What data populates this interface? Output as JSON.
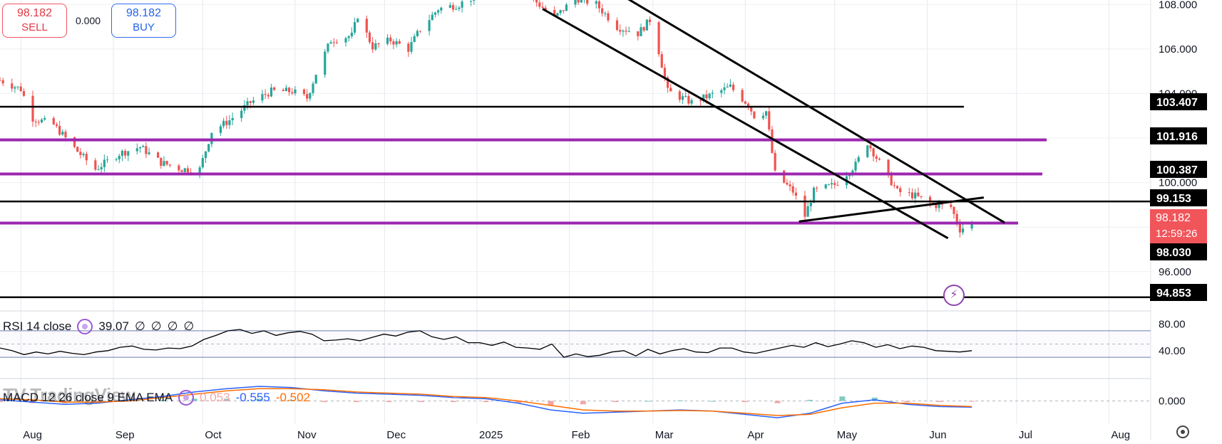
{
  "trade": {
    "sell_price": "98.182",
    "sell_label": "SELL",
    "spread": "0.000",
    "buy_price": "98.182",
    "buy_label": "BUY"
  },
  "current_price": {
    "value": "98.182",
    "countdown": "12:59:26",
    "color": "#f0555a"
  },
  "chart_data": [
    {
      "type": "candlestick",
      "x_ticks": [
        "Aug",
        "Sep",
        "Oct",
        "Nov",
        "Dec",
        "2025",
        "Feb",
        "Mar",
        "Apr",
        "May",
        "Jun",
        "Jul",
        "Aug"
      ],
      "x_range": [
        "2024-07-25",
        "2025-08-15"
      ],
      "y_ticks": [
        96.0,
        98.0,
        100.0,
        102.0,
        104.0,
        106.0,
        108.0
      ],
      "y_tick_labels": [
        "96.000",
        "",
        "100.000",
        "",
        "104.000",
        "106.000",
        "108.000"
      ],
      "ylim": [
        94.3,
        108.2
      ],
      "grid": true,
      "colors": {
        "up": "#26a69a",
        "down": "#ef5350"
      },
      "price_path": [
        [
          "2024-07-25",
          104.6
        ],
        [
          "2024-08-01",
          104.2
        ],
        [
          "2024-08-05",
          102.9
        ],
        [
          "2024-08-12",
          102.6
        ],
        [
          "2024-08-20",
          101.4
        ],
        [
          "2024-08-26",
          100.6
        ],
        [
          "2024-09-03",
          101.3
        ],
        [
          "2024-09-10",
          101.6
        ],
        [
          "2024-09-17",
          100.9
        ],
        [
          "2024-09-24",
          100.6
        ],
        [
          "2024-09-30",
          100.6
        ],
        [
          "2024-10-04",
          102.3
        ],
        [
          "2024-10-10",
          102.8
        ],
        [
          "2024-10-17",
          103.6
        ],
        [
          "2024-10-24",
          104.1
        ],
        [
          "2024-10-31",
          104.1
        ],
        [
          "2024-11-05",
          103.8
        ],
        [
          "2024-11-08",
          104.9
        ],
        [
          "2024-11-13",
          106.4
        ],
        [
          "2024-11-20",
          106.6
        ],
        [
          "2024-11-22",
          107.5
        ],
        [
          "2024-11-27",
          106.1
        ],
        [
          "2024-12-03",
          106.4
        ],
        [
          "2024-12-09",
          106.0
        ],
        [
          "2024-12-13",
          106.9
        ],
        [
          "2024-12-19",
          107.8
        ],
        [
          "2024-12-26",
          108.0
        ],
        [
          "2025-01-02",
          108.5
        ],
        [
          "2025-01-10",
          109.6
        ],
        [
          "2025-01-15",
          109.0
        ],
        [
          "2025-01-21",
          108.1
        ],
        [
          "2025-01-27",
          107.4
        ],
        [
          "2025-02-03",
          108.3
        ],
        [
          "2025-02-10",
          108.0
        ],
        [
          "2025-02-17",
          107.0
        ],
        [
          "2025-02-24",
          106.7
        ],
        [
          "2025-02-28",
          107.3
        ],
        [
          "2025-03-03",
          105.9
        ],
        [
          "2025-03-06",
          104.1
        ],
        [
          "2025-03-14",
          103.6
        ],
        [
          "2025-03-20",
          103.9
        ],
        [
          "2025-03-27",
          104.3
        ],
        [
          "2025-04-02",
          103.5
        ],
        [
          "2025-04-04",
          103.0
        ],
        [
          "2025-04-08",
          103.2
        ],
        [
          "2025-04-11",
          100.4
        ],
        [
          "2025-04-17",
          99.6
        ],
        [
          "2025-04-21",
          98.5
        ],
        [
          "2025-04-24",
          99.6
        ],
        [
          "2025-05-01",
          99.9
        ],
        [
          "2025-05-08",
          100.8
        ],
        [
          "2025-05-12",
          101.8
        ],
        [
          "2025-05-16",
          100.9
        ],
        [
          "2025-05-22",
          99.6
        ],
        [
          "2025-05-28",
          99.4
        ],
        [
          "2025-06-03",
          99.0
        ],
        [
          "2025-06-09",
          98.9
        ],
        [
          "2025-06-12",
          97.9
        ],
        [
          "2025-06-16",
          98.18
        ]
      ],
      "horizontal_levels": [
        {
          "price": 103.407,
          "label": "103.407",
          "color": "#000000"
        },
        {
          "price": 101.916,
          "label": "101.916",
          "color": "#9c27b0"
        },
        {
          "price": 100.387,
          "label": "100.387",
          "color": "#9c27b0"
        },
        {
          "price": 99.153,
          "label": "99.153",
          "color": "#000000"
        },
        {
          "price": 98.182,
          "label": "",
          "color": "#9c27b0"
        },
        {
          "price": 94.853,
          "label": "94.853",
          "color": "#000000"
        }
      ],
      "level_tag": {
        "price": 98.03,
        "label": "98.030"
      },
      "trendlines": [
        {
          "from": [
            "2025-01-23",
            107.8
          ],
          "to": [
            "2025-06-08",
            97.5
          ]
        },
        {
          "from": [
            "2025-02-20",
            108.3
          ],
          "to": [
            "2025-06-27",
            98.2
          ]
        },
        {
          "from": [
            "2025-04-19",
            98.25
          ],
          "to": [
            "2025-06-20",
            99.33
          ]
        }
      ]
    },
    {
      "type": "line",
      "name": "RSI 14 close",
      "value": "39.07",
      "extra": [
        "∅",
        "∅",
        "∅",
        "∅"
      ],
      "ylim": [
        0,
        100
      ],
      "y_ticks": [
        40,
        80
      ],
      "y_tick_labels": [
        "40.00",
        "80.00"
      ],
      "bands": [
        30,
        50,
        70
      ],
      "color": "#000000",
      "values": [
        44,
        40,
        34,
        38,
        35,
        39,
        36,
        34,
        38,
        40,
        45,
        47,
        42,
        41,
        44,
        43,
        47,
        57,
        63,
        70,
        72,
        66,
        70,
        63,
        67,
        69,
        65,
        55,
        56,
        58,
        55,
        60,
        65,
        62,
        68,
        70,
        61,
        57,
        61,
        52,
        52,
        48,
        53,
        45,
        44,
        42,
        50,
        30,
        35,
        31,
        33,
        38,
        40,
        32,
        42,
        35,
        40,
        43,
        38,
        37,
        44,
        44,
        38,
        36,
        40,
        44,
        48,
        45,
        52,
        46,
        50,
        55,
        52,
        45,
        49,
        43,
        47,
        45,
        40,
        39,
        38,
        40
      ]
    },
    {
      "type": "line",
      "name": "MACD 12 26 close 9 EMA EMA",
      "values_shown": [
        "0.053",
        "-0.555",
        "-0.502"
      ],
      "ylim": [
        -2,
        2
      ],
      "y_ticks": [
        0
      ],
      "y_tick_labels": [
        "0.000"
      ],
      "series": [
        {
          "color": "#2962ff",
          "values": [
            0.1,
            -0.1,
            -0.3,
            -0.2,
            0.1,
            0.4,
            0.8,
            1.1,
            1.3,
            1.2,
            0.9,
            0.7,
            0.6,
            0.5,
            0.3,
            0.2,
            -0.2,
            -0.8,
            -1.1,
            -1.0,
            -0.9,
            -0.8,
            -0.9,
            -1.2,
            -1.5,
            -1.1,
            -0.2,
            0.1,
            -0.3,
            -0.5,
            -0.55
          ]
        },
        {
          "color": "#ff6d00",
          "values": [
            0.2,
            0.1,
            -0.1,
            -0.1,
            0.0,
            0.3,
            0.6,
            0.9,
            1.1,
            1.1,
            1.0,
            0.8,
            0.7,
            0.6,
            0.4,
            0.3,
            0.0,
            -0.4,
            -0.8,
            -0.9,
            -0.9,
            -0.85,
            -0.9,
            -1.1,
            -1.3,
            -1.2,
            -0.6,
            -0.2,
            -0.2,
            -0.4,
            -0.5
          ]
        }
      ]
    }
  ],
  "watermark": {
    "text": "TradingView",
    "icon": "tradingview-logo-icon"
  },
  "icons": {
    "lightning": "lightning-icon",
    "settings": "settings-icon"
  }
}
